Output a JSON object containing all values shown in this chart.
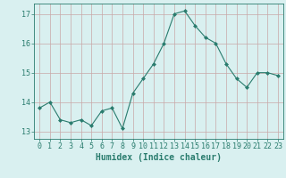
{
  "x": [
    0,
    1,
    2,
    3,
    4,
    5,
    6,
    7,
    8,
    9,
    10,
    11,
    12,
    13,
    14,
    15,
    16,
    17,
    18,
    19,
    20,
    21,
    22,
    23
  ],
  "y": [
    13.8,
    14.0,
    13.4,
    13.3,
    13.4,
    13.2,
    13.7,
    13.8,
    13.1,
    14.3,
    14.8,
    15.3,
    16.0,
    17.0,
    17.1,
    16.6,
    16.2,
    16.0,
    15.3,
    14.8,
    14.5,
    15.0,
    15.0,
    14.9
  ],
  "line_color": "#2a7c6e",
  "marker": "D",
  "marker_size": 2,
  "bg_color": "#d9f0f0",
  "grid_color": "#c8a8a8",
  "xlabel": "Humidex (Indice chaleur)",
  "xlim": [
    -0.5,
    23.5
  ],
  "ylim": [
    12.75,
    17.35
  ],
  "yticks": [
    13,
    14,
    15,
    16,
    17
  ],
  "xticks": [
    0,
    1,
    2,
    3,
    4,
    5,
    6,
    7,
    8,
    9,
    10,
    11,
    12,
    13,
    14,
    15,
    16,
    17,
    18,
    19,
    20,
    21,
    22,
    23
  ],
  "tick_color": "#2a7c6e",
  "label_color": "#2a7c6e",
  "font_size": 6.0,
  "xlabel_size": 7.0
}
